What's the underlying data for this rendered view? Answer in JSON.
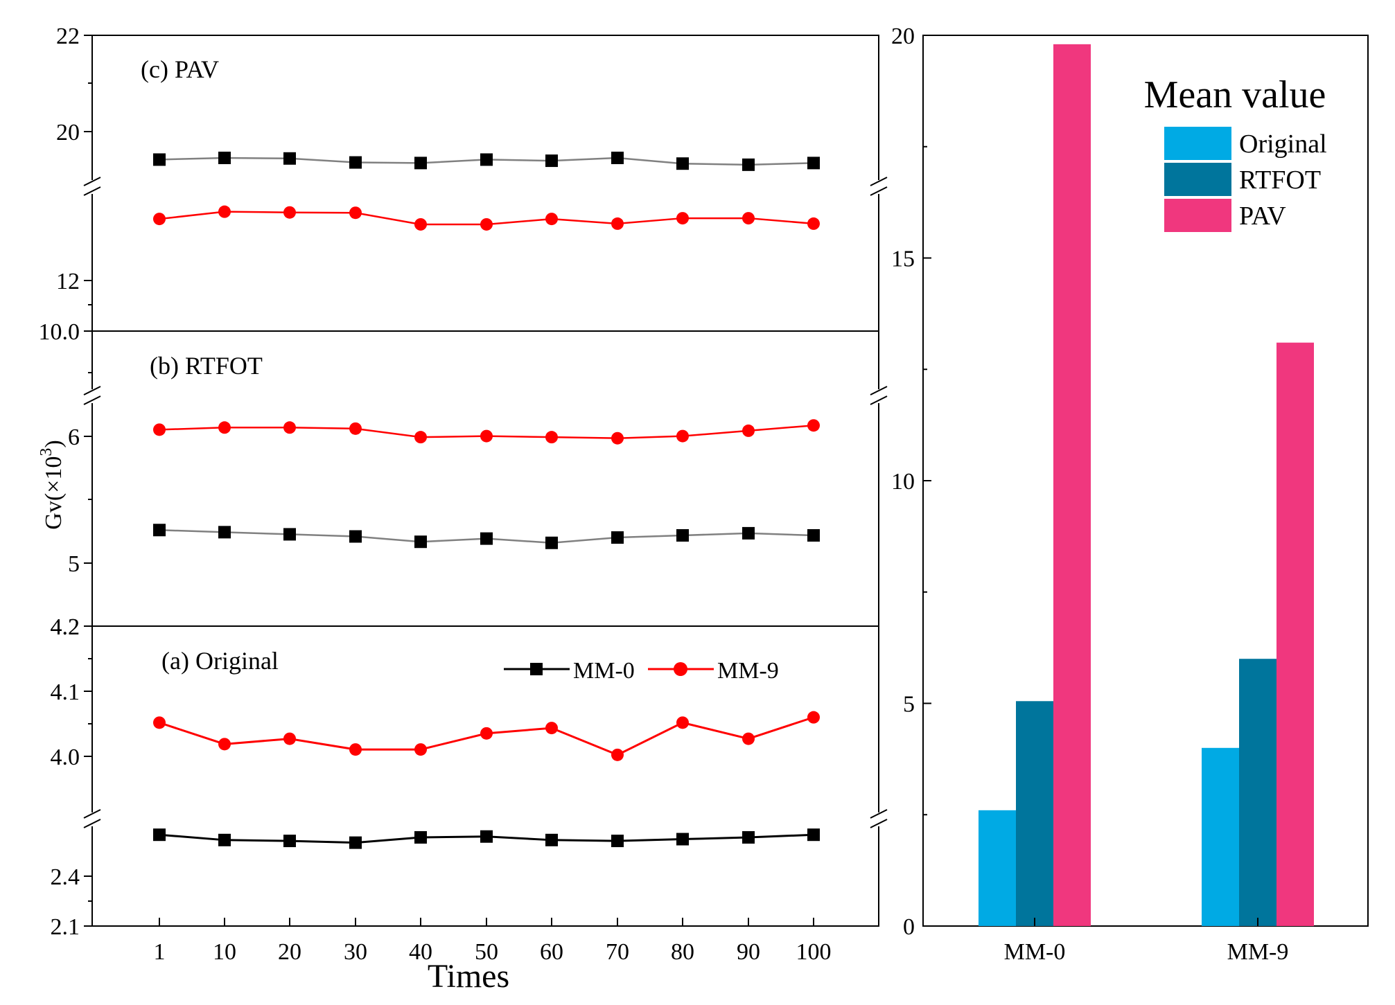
{
  "chart_data": [
    {
      "type": "line",
      "layout": "three vertically stacked panels sharing one x axis",
      "ylabel": "Gv(×10",
      "ylabel_exp": "3",
      "ylabel_close": ")",
      "xlabel": "Times",
      "x": [
        1,
        10,
        20,
        30,
        40,
        50,
        60,
        70,
        80,
        90,
        100
      ],
      "x_tick_labels": [
        "1",
        "10",
        "20",
        "30",
        "40",
        "50",
        "60",
        "70",
        "80",
        "90",
        "100"
      ],
      "x_axis_break": "none",
      "colors": {
        "MM-0": "#000000",
        "MM-0 (b,c)": "#808080",
        "MM-9": "#ff0000"
      },
      "legend": {
        "placement": "top-right of panel (a)",
        "entries": [
          "MM-0",
          "MM-9"
        ]
      },
      "panels": [
        {
          "label": "(c) PAV",
          "position": "top",
          "y_axis_break": true,
          "y_ticks": [
            "22",
            "20",
            "12",
            "10.0"
          ],
          "series": [
            {
              "name": "MM-0",
              "values": [
                19.82,
                19.85,
                19.84,
                19.77,
                19.76,
                19.82,
                19.8,
                19.85,
                19.75,
                19.73,
                19.76
              ]
            },
            {
              "name": "MM-9",
              "values": [
                13.1,
                13.3,
                13.28,
                13.27,
                12.95,
                12.95,
                13.1,
                12.97,
                13.12,
                13.12,
                12.97
              ]
            }
          ]
        },
        {
          "label": "(b) RTFOT",
          "position": "middle",
          "y_axis_break": true,
          "y_ticks": [
            "6",
            "5",
            "4.2"
          ],
          "series": [
            {
              "name": "MM-0",
              "values": [
                5.1,
                5.08,
                5.06,
                5.04,
                4.99,
                5.02,
                4.98,
                5.03,
                5.05,
                5.07,
                5.05
              ]
            },
            {
              "name": "MM-9",
              "values": [
                6.04,
                6.06,
                6.06,
                6.05,
                5.97,
                5.98,
                5.97,
                5.96,
                5.98,
                6.03,
                6.08
              ]
            }
          ]
        },
        {
          "label": "(a) Original",
          "position": "bottom",
          "y_axis_break": true,
          "y_ticks": [
            "4.2",
            "4.1",
            "4.0",
            "2.4",
            "2.1"
          ],
          "series": [
            {
              "name": "MM-0",
              "values": [
                2.62,
                2.59,
                2.585,
                2.575,
                2.605,
                2.61,
                2.59,
                2.585,
                2.595,
                2.605,
                2.62
              ]
            },
            {
              "name": "MM-9",
              "values": [
                4.02,
                3.98,
                3.99,
                3.97,
                3.97,
                4.0,
                4.01,
                3.96,
                4.02,
                3.99,
                4.03
              ]
            }
          ]
        }
      ]
    },
    {
      "type": "bar",
      "legend_title": "Mean value",
      "legend_placement": "top-right",
      "categories": [
        "MM-0",
        "MM-9"
      ],
      "ylim": [
        0,
        20
      ],
      "y_ticks": [
        0,
        5,
        10,
        15,
        20
      ],
      "xlabel": "",
      "ylabel": "",
      "series": [
        {
          "name": "Original",
          "color": "#00aae4",
          "values": [
            2.6,
            4.0
          ]
        },
        {
          "name": "RTFOT",
          "color": "#00759c",
          "values": [
            5.05,
            6.0
          ]
        },
        {
          "name": "PAV",
          "color": "#f0377e",
          "values": [
            19.8,
            13.1
          ]
        }
      ]
    }
  ]
}
